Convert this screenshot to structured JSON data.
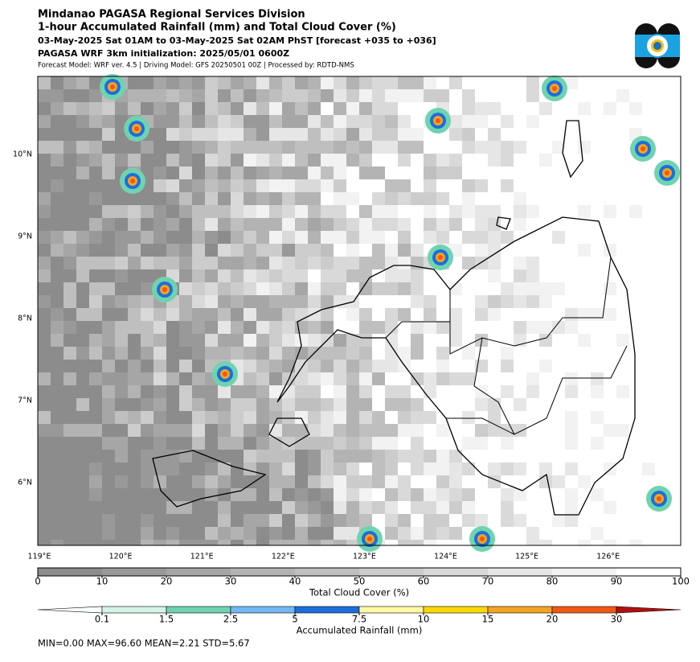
{
  "header": {
    "lines": [
      "Mindanao PAGASA Regional Services Division",
      "1-hour Accumulated Rainfall (mm) and Total Cloud Cover (%)",
      "03-May-2025 Sat 01AM to 03-May-2025 Sat 02AM PhST [forecast +035 to +036]",
      "PAGASA WRF 3km initialization: 2025/05/01 0600Z"
    ],
    "note": "Forecast Model: WRF ver. 4.5 | Driving Model: GFS 20250501 00Z | Processed by: RDTD-NMS"
  },
  "map": {
    "lon_labels": [
      "119°E",
      "120°E",
      "121°E",
      "122°E",
      "123°E",
      "124°E",
      "125°E",
      "126°E"
    ],
    "lat_labels": [
      "10°N",
      "9°N",
      "8°N",
      "7°N",
      "6°N"
    ]
  },
  "cloud_colorbar": {
    "label": "Total Cloud Cover (%)",
    "ticks": [
      0,
      10,
      20,
      30,
      40,
      50,
      60,
      70,
      80,
      90,
      100
    ],
    "colors": [
      "#8c8c8c",
      "#999999",
      "#a6a6a6",
      "#b3b3b3",
      "#bfbfbf",
      "#cccccc",
      "#d9d9d9",
      "#e6e6e6",
      "#f2f2f2",
      "#ffffff"
    ]
  },
  "rain_colorbar": {
    "label": "Accumulated Rainfall (mm)",
    "ticks": [
      0.1,
      1.5,
      2.5,
      5,
      7.5,
      10,
      15,
      20,
      30
    ],
    "colors": [
      "#f7fdfb",
      "#d5f4e8",
      "#6fd3b0",
      "#74b9f5",
      "#1c6fdb",
      "#fff9a6",
      "#ffd800",
      "#f6a323",
      "#f05814",
      "#b0100f"
    ]
  },
  "stats": "MIN=0.00   MAX=96.60   MEAN=2.21   STD=5.67"
}
